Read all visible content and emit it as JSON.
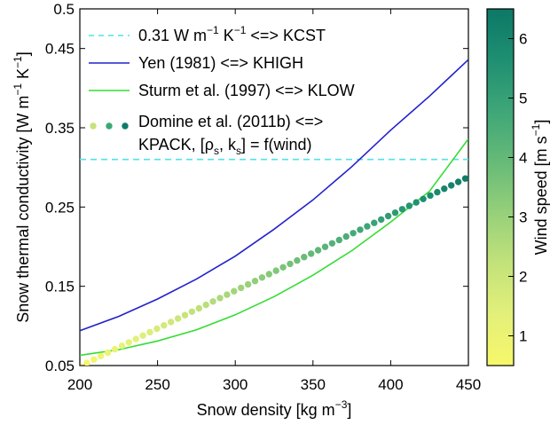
{
  "chart_data": {
    "type": "line",
    "xlabel": "Snow density [kg m",
    "xlabel_unit_exponent": "−3",
    "xlabel_close": "]",
    "ylabel": "Snow thermal conductivity [W m",
    "ylabel_unit_exponent_1": "−1",
    "ylabel_mid": " K",
    "ylabel_unit_exponent_2": "−1",
    "ylabel_close": "]",
    "xlim": [
      200,
      450
    ],
    "ylim": [
      0.05,
      0.5
    ],
    "x_ticks": [
      200,
      250,
      300,
      350,
      400,
      450
    ],
    "y_ticks": [
      0.05,
      0.15,
      0.25,
      0.35,
      0.45,
      0.5
    ],
    "x_tick_labels": [
      "200",
      "250",
      "300",
      "350",
      "400",
      "450"
    ],
    "y_tick_labels": [
      "0.05",
      "0.15",
      "0.25",
      "0.35",
      "0.45",
      "0.5"
    ],
    "grid": false,
    "legend_position": "top-left",
    "series": [
      {
        "key": "kcst",
        "legend_parts": [
          "0.31 W m",
          "−1",
          " K",
          "−1",
          " <=> KCST"
        ],
        "style": "dashed",
        "color": "#4de3ea",
        "x": [
          200,
          450
        ],
        "y": [
          0.31,
          0.31
        ]
      },
      {
        "key": "khigh",
        "legend_parts": [
          "Yen (1981) <=> KHIGH"
        ],
        "style": "solid",
        "color": "#2222cc",
        "x": [
          200,
          225,
          250,
          275,
          300,
          325,
          350,
          375,
          400,
          425,
          450
        ],
        "y": [
          0.094,
          0.112,
          0.134,
          0.159,
          0.188,
          0.222,
          0.259,
          0.301,
          0.347,
          0.39,
          0.436
        ]
      },
      {
        "key": "klow",
        "legend_parts": [
          "Sturm et al. (1997) <=> KLOW"
        ],
        "style": "solid",
        "color": "#33dd33",
        "x": [
          200,
          225,
          250,
          275,
          300,
          325,
          350,
          375,
          400,
          425,
          450
        ],
        "y": [
          0.063,
          0.07,
          0.081,
          0.095,
          0.114,
          0.137,
          0.164,
          0.195,
          0.231,
          0.27,
          0.336
        ]
      },
      {
        "key": "kpack",
        "legend_line1": "Domine et al. (2011b) <=>",
        "legend_line2_parts": [
          "KPACK, [ρ",
          "s",
          ", k",
          "s",
          "] = f(wind)"
        ],
        "style": "markers",
        "x_start": 200,
        "x_end": 448,
        "y_start": 0.049,
        "y_end": 0.286,
        "wind_start": 0.5,
        "wind_end": 6.3,
        "n_points": 56,
        "legend_marker_colors": [
          "#c6e37a",
          "#3aa876",
          "#0f7a68"
        ]
      }
    ],
    "colorbar": {
      "label": "Wind speed [m s",
      "label_exponent": "−1",
      "label_close": "]",
      "range": [
        0.5,
        6.5
      ],
      "ticks": [
        1,
        2,
        3,
        4,
        5,
        6
      ],
      "tick_labels": [
        "1",
        "2",
        "3",
        "4",
        "5",
        "6"
      ],
      "colors": [
        "#f7f76a",
        "#e3f07a",
        "#c3e27a",
        "#96d07a",
        "#66ba78",
        "#3ea678",
        "#1f8f72",
        "#0c7866"
      ]
    }
  }
}
